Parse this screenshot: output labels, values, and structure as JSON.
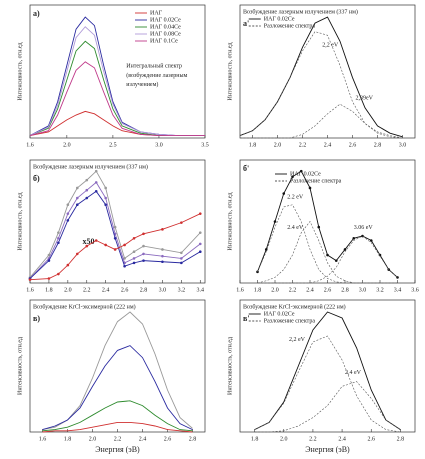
{
  "chart_data": [
    {
      "type": "line",
      "label": "а)",
      "ylabel": "Интенсивность, отн.ед",
      "annotations": [
        "Интегральный спектр",
        "(возбуждение лазерным",
        "излучением)"
      ],
      "x": [
        1.6,
        1.8,
        1.9,
        2.0,
        2.1,
        2.2,
        2.3,
        2.4,
        2.5,
        2.6,
        2.8,
        3.0,
        3.2,
        3.5
      ],
      "xlim": [
        1.6,
        3.5
      ],
      "xticks": [
        1.6,
        {
          "value": 2,
          "label": "2.0"
        },
        2.5,
        {
          "value": 3,
          "label": "3.0"
        },
        3.5
      ],
      "ylim": [
        0,
        1.1
      ],
      "legend": "upper right",
      "series": [
        {
          "name": "ИАГ",
          "color": "#d03030",
          "values": [
            0.02,
            0.05,
            0.1,
            0.15,
            0.19,
            0.22,
            0.2,
            0.15,
            0.1,
            0.06,
            0.03,
            0.02,
            0.02,
            0.02
          ]
        },
        {
          "name": "ИАГ 0.02Ce",
          "color": "#2a2aa0",
          "values": [
            0.02,
            0.1,
            0.3,
            0.6,
            0.9,
            1.0,
            0.93,
            0.6,
            0.3,
            0.13,
            0.05,
            0.03,
            0.02,
            0.02
          ]
        },
        {
          "name": "ИАГ 0.04Ce",
          "color": "#2e8b2e",
          "values": [
            0.02,
            0.08,
            0.24,
            0.48,
            0.72,
            0.8,
            0.74,
            0.48,
            0.24,
            0.1,
            0.04,
            0.02,
            0.02,
            0.02
          ]
        },
        {
          "name": "ИАГ 0.08Ce",
          "color": "#b09ad8",
          "values": [
            0.02,
            0.09,
            0.27,
            0.55,
            0.83,
            0.92,
            0.85,
            0.55,
            0.28,
            0.12,
            0.05,
            0.03,
            0.02,
            0.02
          ]
        },
        {
          "name": "ИАГ 0.1Ce",
          "color": "#c03a8a",
          "values": [
            0.02,
            0.06,
            0.19,
            0.38,
            0.56,
            0.63,
            0.58,
            0.38,
            0.19,
            0.08,
            0.03,
            0.02,
            0.02,
            0.02
          ]
        }
      ]
    },
    {
      "type": "line",
      "label": "а'",
      "title": "Возбуждение лазерным излучением (337 нм)",
      "ylabel": "Интенсивность, отн.ед",
      "annotations": [
        "2,2 eV",
        "2,39eV"
      ],
      "x": [
        1.7,
        1.8,
        1.9,
        2.0,
        2.1,
        2.2,
        2.3,
        2.4,
        2.5,
        2.6,
        2.7,
        2.8,
        2.9,
        3.0
      ],
      "xlim": [
        1.7,
        3.1
      ],
      "xticks": [
        1.8,
        {
          "value": 2,
          "label": "2.0"
        },
        2.2,
        2.4,
        2.6,
        2.8,
        {
          "value": 3,
          "label": "3.0"
        }
      ],
      "ylim": [
        0,
        1.1
      ],
      "legend": "upper left",
      "series": [
        {
          "name": "ИАГ 0.02Ce",
          "color": "#111111",
          "values": [
            0.02,
            0.06,
            0.15,
            0.3,
            0.5,
            0.75,
            0.95,
            1.0,
            0.8,
            0.5,
            0.25,
            0.1,
            0.04,
            0.01
          ]
        },
        {
          "name": "Разложение спектра",
          "color": "#555555",
          "dash": true,
          "values": [
            0.02,
            0.06,
            0.15,
            0.3,
            0.5,
            0.72,
            0.88,
            0.85,
            0.6,
            0.3,
            0.12,
            0.04,
            0.01,
            0
          ]
        },
        {
          "color": "#555555",
          "dash": true,
          "values": [
            0,
            0,
            0,
            0,
            0,
            0.03,
            0.1,
            0.2,
            0.28,
            0.22,
            0.12,
            0.05,
            0.02,
            0
          ]
        }
      ]
    },
    {
      "type": "line",
      "label": "б)",
      "title": "Возбуждение лазерным излучением (337 нм)",
      "ylabel": "Интенсивность, отн.ед",
      "annotations": [
        "x50"
      ],
      "markers": true,
      "x": [
        1.6,
        1.8,
        1.9,
        2.0,
        2.1,
        2.2,
        2.3,
        2.4,
        2.5,
        2.6,
        2.7,
        2.8,
        3.0,
        3.2,
        3.4
      ],
      "xlim": [
        1.6,
        3.45
      ],
      "xticks": [
        1.6,
        1.8,
        {
          "value": 2,
          "label": "2.0"
        },
        2.2,
        2.4,
        2.6,
        2.8,
        {
          "value": 3,
          "label": "3.0"
        },
        3.2,
        3.4
      ],
      "ylim": [
        0,
        1.1
      ],
      "series": [
        {
          "color": "#999999",
          "values": [
            0.05,
            0.25,
            0.45,
            0.7,
            0.85,
            0.92,
            1.0,
            0.85,
            0.5,
            0.22,
            0.28,
            0.33,
            0.3,
            0.27,
            0.45
          ]
        },
        {
          "color": "#8b6bbf",
          "values": [
            0.04,
            0.22,
            0.4,
            0.62,
            0.76,
            0.83,
            0.9,
            0.76,
            0.44,
            0.18,
            0.22,
            0.26,
            0.24,
            0.22,
            0.35
          ]
        },
        {
          "color": "#2a2aa0",
          "values": [
            0.04,
            0.2,
            0.36,
            0.56,
            0.7,
            0.76,
            0.82,
            0.7,
            0.4,
            0.15,
            0.18,
            0.2,
            0.19,
            0.18,
            0.28
          ]
        },
        {
          "color": "#d03030",
          "values": [
            0.03,
            0.04,
            0.08,
            0.16,
            0.26,
            0.33,
            0.38,
            0.34,
            0.3,
            0.34,
            0.4,
            0.44,
            0.48,
            0.54,
            0.62
          ]
        }
      ]
    },
    {
      "type": "line",
      "label": "б'",
      "ylabel": "Интенсивность, отн.ед",
      "annotations": [
        "2.2 eV",
        "2.4 eV",
        "3.06 eV"
      ],
      "x": [
        1.8,
        1.9,
        2.0,
        2.1,
        2.2,
        2.3,
        2.4,
        2.5,
        2.6,
        2.7,
        2.8,
        2.9,
        3.0,
        3.1,
        3.2,
        3.3,
        3.4
      ],
      "xlim": [
        1.6,
        3.6
      ],
      "xticks": [
        1.6,
        1.8,
        {
          "value": 2,
          "label": "2.0"
        },
        2.2,
        2.4,
        2.6,
        2.8,
        {
          "value": 3,
          "label": "3.0"
        },
        3.2,
        3.4,
        3.6
      ],
      "ylim": [
        0,
        1.1
      ],
      "legend": "upper left",
      "series": [
        {
          "name": "ИАГ 0.02Ce",
          "color": "#111111",
          "markers": true,
          "values": [
            0.1,
            0.3,
            0.55,
            0.8,
            0.95,
            1.0,
            0.85,
            0.5,
            0.25,
            0.2,
            0.3,
            0.4,
            0.42,
            0.38,
            0.25,
            0.12,
            0.05
          ]
        },
        {
          "name": "Разложение спектра",
          "color": "#555555",
          "dash": true,
          "values": [
            0.1,
            0.28,
            0.5,
            0.68,
            0.7,
            0.55,
            0.3,
            0.12,
            0.04,
            0.01,
            0,
            0,
            0,
            0,
            0,
            0,
            0
          ]
        },
        {
          "color": "#555555",
          "dash": true,
          "values": [
            0,
            0.02,
            0.05,
            0.12,
            0.25,
            0.45,
            0.55,
            0.38,
            0.18,
            0.06,
            0.02,
            0,
            0,
            0,
            0,
            0,
            0
          ]
        },
        {
          "color": "#555555",
          "dash": true,
          "values": [
            0,
            0,
            0,
            0,
            0,
            0,
            0,
            0.02,
            0.06,
            0.14,
            0.28,
            0.38,
            0.42,
            0.36,
            0.24,
            0.12,
            0.05
          ]
        }
      ]
    },
    {
      "type": "line",
      "label": "в)",
      "title": "Возбуждение KrCl-эксимерной (222 нм)",
      "ylabel": "Интенсивность, отн.ед",
      "xlabel": "Энергия (эВ)",
      "x": [
        1.6,
        1.7,
        1.8,
        1.9,
        2.0,
        2.1,
        2.2,
        2.3,
        2.4,
        2.5,
        2.6,
        2.7,
        2.8
      ],
      "xlim": [
        1.5,
        2.9
      ],
      "xticks": [
        1.6,
        1.8,
        {
          "value": 2,
          "label": "2.0"
        },
        2.2,
        2.4,
        2.6,
        2.8
      ],
      "ylim": [
        0,
        1.1
      ],
      "series": [
        {
          "color": "#999999",
          "values": [
            0.02,
            0.04,
            0.1,
            0.22,
            0.45,
            0.72,
            0.92,
            1.0,
            0.9,
            0.65,
            0.35,
            0.12,
            0.03
          ]
        },
        {
          "color": "#2a2aa0",
          "values": [
            0.02,
            0.05,
            0.1,
            0.2,
            0.38,
            0.55,
            0.68,
            0.72,
            0.62,
            0.42,
            0.2,
            0.07,
            0.02
          ]
        },
        {
          "color": "#2e8b2e",
          "values": [
            0.01,
            0.02,
            0.04,
            0.08,
            0.14,
            0.2,
            0.25,
            0.26,
            0.22,
            0.14,
            0.07,
            0.02,
            0.01
          ]
        },
        {
          "color": "#d03030",
          "values": [
            0,
            0.01,
            0.01,
            0.02,
            0.04,
            0.06,
            0.08,
            0.08,
            0.07,
            0.05,
            0.02,
            0.01,
            0
          ]
        }
      ]
    },
    {
      "type": "line",
      "label": "в'",
      "title": "Возбуждение KrCl-эксимерной (222 нм)",
      "ylabel": "Интенсивность, отн.ед",
      "xlabel": "Энергия (эВ)",
      "annotations": [
        "2,2 eV",
        "2,4 eV"
      ],
      "x": [
        1.8,
        1.9,
        2.0,
        2.1,
        2.2,
        2.3,
        2.4,
        2.5,
        2.6,
        2.7,
        2.8
      ],
      "xlim": [
        1.7,
        2.9
      ],
      "xticks": [
        1.8,
        {
          "value": 2,
          "label": "2.0"
        },
        2.2,
        2.4,
        2.6,
        2.8
      ],
      "ylim": [
        0,
        1.1
      ],
      "legend": "upper left",
      "series": [
        {
          "name": "ИАГ 0.02Ce",
          "color": "#111111",
          "values": [
            0.02,
            0.08,
            0.25,
            0.55,
            0.85,
            1.0,
            0.95,
            0.7,
            0.35,
            0.1,
            0.02
          ]
        },
        {
          "name": "Разложение спектра",
          "color": "#555555",
          "dash": true,
          "values": [
            0.02,
            0.08,
            0.24,
            0.5,
            0.75,
            0.8,
            0.6,
            0.3,
            0.1,
            0.02,
            0
          ]
        },
        {
          "color": "#555555",
          "dash": true,
          "values": [
            0,
            0,
            0.01,
            0.05,
            0.12,
            0.22,
            0.38,
            0.42,
            0.28,
            0.1,
            0.02
          ]
        }
      ]
    }
  ]
}
